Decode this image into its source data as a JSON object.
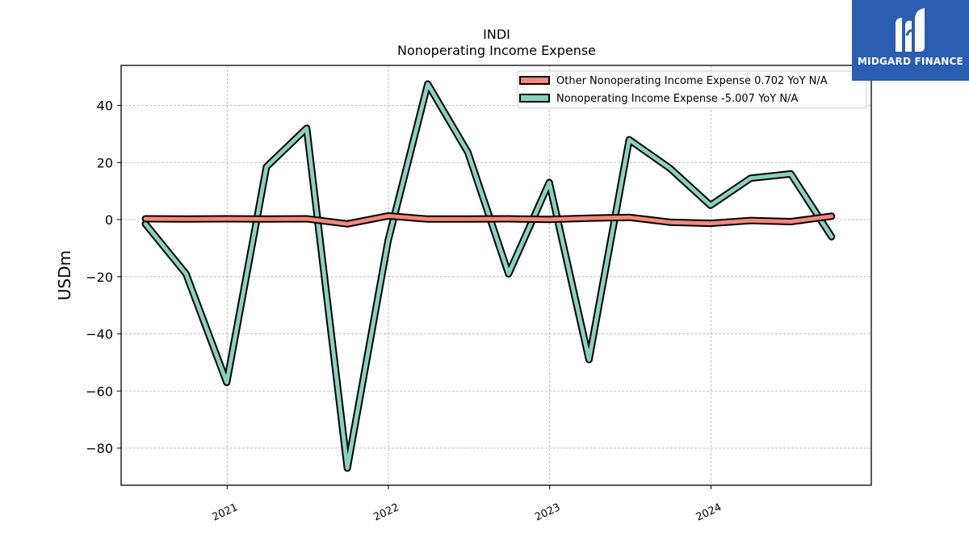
{
  "chart_data": {
    "type": "line",
    "title": "INDI",
    "subtitle": "Nonoperating Income Expense",
    "ylabel": "USDm",
    "ylim": [
      -93,
      54
    ],
    "yticks": [
      40,
      20,
      0,
      -20,
      -40,
      -60,
      -80
    ],
    "ytick_labels": [
      "40",
      "20",
      "0",
      "−20",
      "−40",
      "−60",
      "−80"
    ],
    "xlim": [
      "2020-05-06",
      "2024-12-29"
    ],
    "xticks": [
      "2021-01-01",
      "2022-01-01",
      "2023-01-01",
      "2024-01-01"
    ],
    "xtick_labels": [
      "2021",
      "2022",
      "2023",
      "2024"
    ],
    "x": [
      "2020-06-30",
      "2020-09-30",
      "2020-12-31",
      "2021-03-31",
      "2021-06-30",
      "2021-09-30",
      "2021-12-31",
      "2022-03-31",
      "2022-06-30",
      "2022-09-30",
      "2022-12-31",
      "2023-03-31",
      "2023-06-30",
      "2023-09-30",
      "2023-12-31",
      "2024-03-31",
      "2024-06-30",
      "2024-09-30"
    ],
    "series": [
      {
        "name": "Nonoperating Income Expense",
        "legend_label": "Nonoperating Income Expense  -5.007 YoY N/A",
        "color": "#88d1c1",
        "values": [
          -1.5,
          -19,
          -57,
          18.5,
          32,
          -87,
          -7.5,
          47.5,
          23.5,
          -19,
          13,
          -49,
          28,
          18,
          5,
          14.5,
          16,
          -6
        ]
      },
      {
        "name": "Other Nonoperating Income Expense",
        "legend_label": "Other Nonoperating Income Expense  0.702 YoY N/A",
        "color": "#f4887b",
        "values": [
          0.3,
          0.2,
          0.3,
          0.2,
          0.3,
          -1.5,
          1.3,
          0.2,
          0.2,
          0.3,
          0.1,
          0.5,
          0.8,
          -0.9,
          -1.3,
          -0.3,
          -0.7,
          1.2
        ]
      }
    ],
    "grid": true,
    "legend_position": "top-right"
  },
  "logo": {
    "text": "MIDGARD FINANCE",
    "color": "#2b5db0"
  }
}
